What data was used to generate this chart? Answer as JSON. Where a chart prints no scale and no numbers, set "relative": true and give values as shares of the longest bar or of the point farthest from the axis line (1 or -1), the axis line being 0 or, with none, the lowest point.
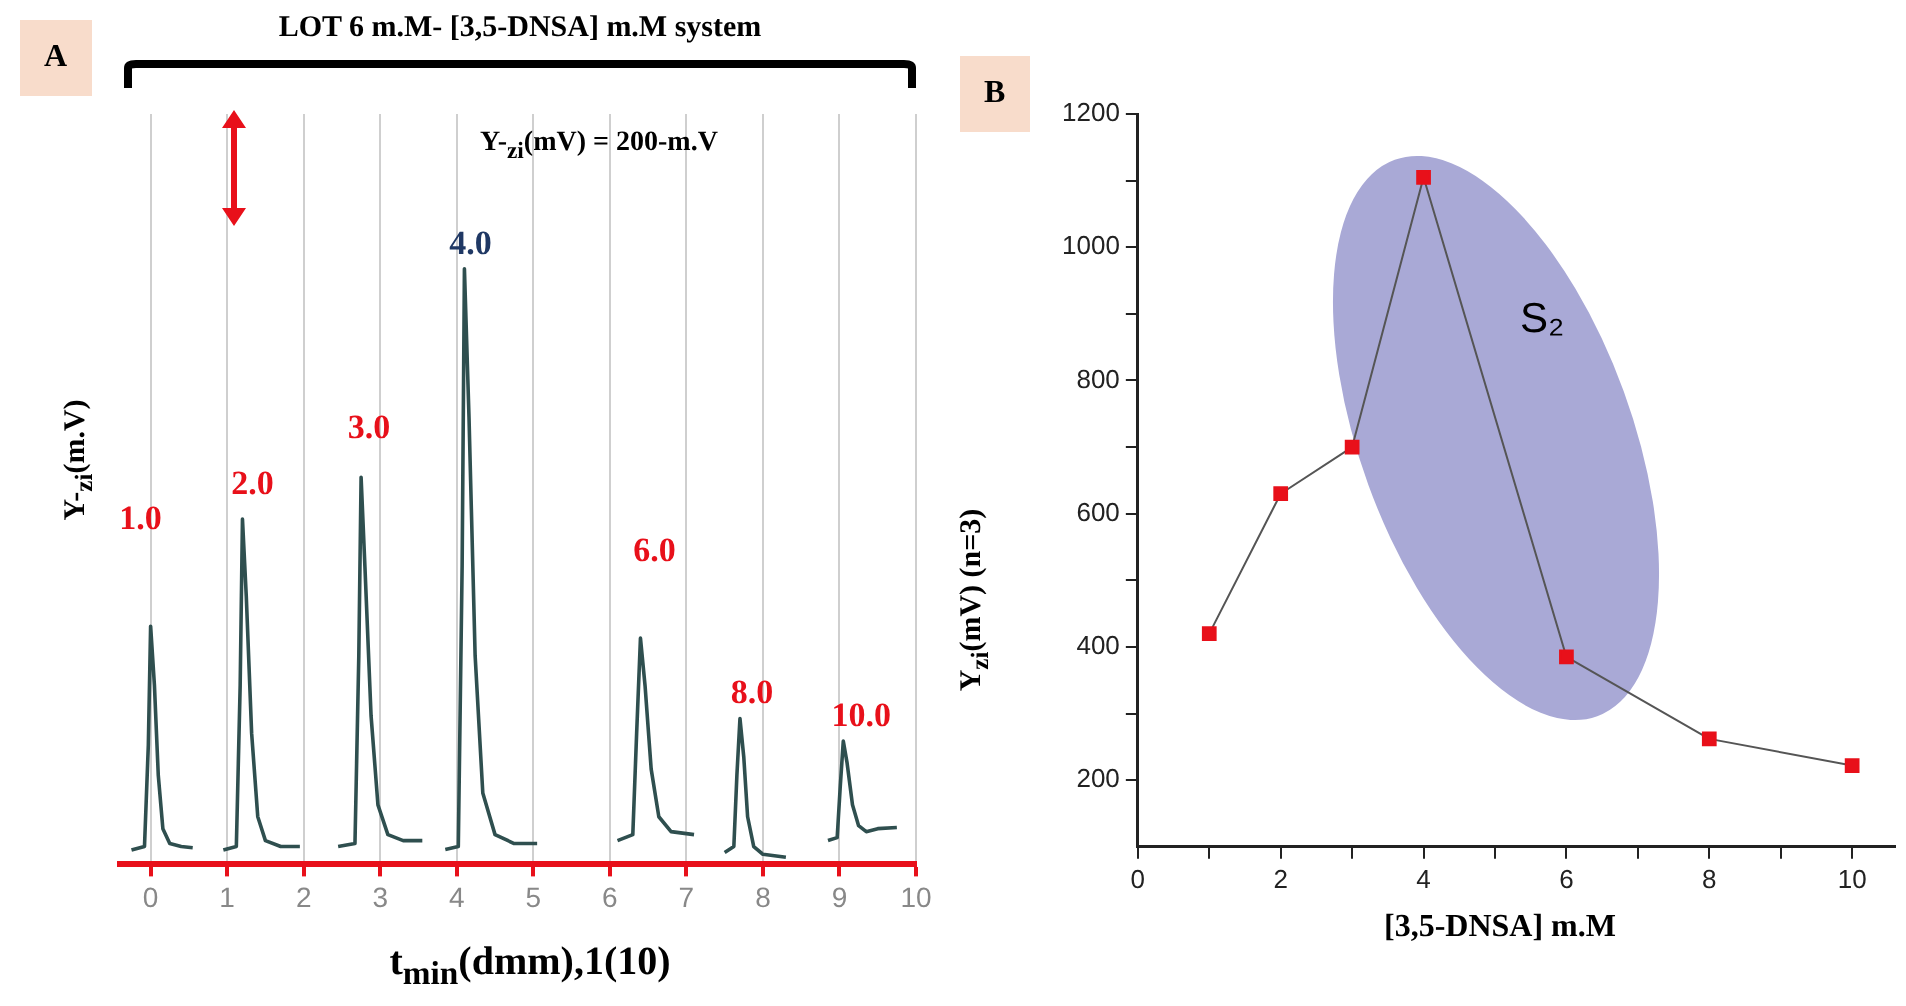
{
  "chart_data": [
    {
      "type": "line",
      "title": "LOT 6 m.M- [3,5-DNSA] m.M system",
      "xlabel": "t$_{min}$(dmm),1(10)",
      "ylabel": "Y-$_{zi}$(m.V)",
      "relative": true,
      "color": "#2f4f4f",
      "grid": "x",
      "xlim": [
        -0.4,
        10
      ],
      "xticks": [
        0,
        1,
        2,
        3,
        4,
        5,
        6,
        7,
        8,
        9,
        10
      ],
      "x": [
        -0.25,
        -0.08,
        -0.03,
        0,
        0.05,
        0.1,
        0.16,
        0.25,
        0.4,
        0.55,
        0.75,
        0.95,
        1.12,
        1.17,
        1.2,
        1.25,
        1.32,
        1.4,
        1.5,
        1.7,
        1.95,
        2.2,
        2.45,
        2.67,
        2.72,
        2.75,
        2.8,
        2.88,
        2.97,
        3.1,
        3.3,
        3.55,
        3.7,
        3.85,
        4.02,
        4.07,
        4.1,
        4.16,
        4.24,
        4.34,
        4.5,
        4.75,
        5.05,
        5.6,
        6.1,
        6.3,
        6.35,
        6.4,
        6.46,
        6.54,
        6.64,
        6.8,
        7.1,
        7.3,
        7.5,
        7.62,
        7.66,
        7.7,
        7.75,
        7.8,
        7.88,
        8.0,
        8.3,
        8.6,
        8.85,
        8.97,
        9.01,
        9.05,
        9.1,
        9.17,
        9.25,
        9.35,
        9.5,
        9.75
      ],
      "values": [
        0.024,
        0.03,
        0.2,
        0.4,
        0.3,
        0.15,
        0.06,
        0.035,
        0.03,
        0.028,
        null,
        0.024,
        0.03,
        0.3,
        0.58,
        0.45,
        0.22,
        0.08,
        0.04,
        0.03,
        0.03,
        null,
        0.03,
        0.035,
        0.35,
        0.65,
        0.5,
        0.25,
        0.1,
        0.05,
        0.04,
        0.04,
        null,
        0.025,
        0.03,
        0.5,
        1.0,
        0.75,
        0.35,
        0.12,
        0.05,
        0.035,
        0.035,
        null,
        0.04,
        0.05,
        0.22,
        0.38,
        0.3,
        0.16,
        0.08,
        0.055,
        0.05,
        null,
        0.02,
        0.03,
        0.15,
        0.245,
        0.18,
        0.08,
        0.03,
        0.017,
        0.012,
        null,
        0.04,
        0.045,
        0.13,
        0.207,
        0.17,
        0.1,
        0.065,
        0.055,
        0.06,
        0.062
      ],
      "annotations": [
        "A",
        "Y-$_{zi}$(mV) = 200-m.V",
        {
          "text": "1.0",
          "x": 0,
          "y": 0.4
        },
        {
          "text": "2.0",
          "x": 1.2,
          "y": 0.58
        },
        {
          "text": "3.0",
          "x": 2.75,
          "y": 0.65
        },
        {
          "text": "4.0",
          "x": 4.1,
          "y": 1.0
        },
        {
          "text": "6.0",
          "x": 6.4,
          "y": 0.38
        },
        {
          "text": "8.0",
          "x": 7.7,
          "y": 0.245
        },
        {
          "text": "10.0",
          "x": 9.05,
          "y": 0.207
        }
      ]
    },
    {
      "type": "line",
      "xlabel": "[3,5-DNSA] m.M",
      "ylabel": "Y$_{zi}$(mV) (n=3)",
      "marker": "square",
      "color": "#e8101a",
      "xlim": [
        0,
        10.6
      ],
      "ylim": [
        100,
        1200
      ],
      "xticks": [
        0,
        {
          "value": 1,
          "label": null
        },
        2,
        {
          "value": 3,
          "label": null
        },
        4,
        {
          "value": 5,
          "label": null
        },
        6,
        {
          "value": 7,
          "label": null
        },
        8,
        {
          "value": 9,
          "label": null
        },
        10
      ],
      "yticks": [
        200,
        {
          "value": 300,
          "label": null
        },
        400,
        {
          "value": 500,
          "label": null
        },
        600,
        {
          "value": 700,
          "label": null
        },
        800,
        {
          "value": 900,
          "label": null
        },
        1000,
        {
          "value": 1100,
          "label": null
        },
        1200
      ],
      "x": [
        1,
        2,
        3,
        4,
        6,
        8,
        10
      ],
      "values": [
        420,
        630,
        700,
        1105,
        385,
        262,
        222
      ],
      "annotations": [
        "B",
        "S₂"
      ]
    }
  ]
}
